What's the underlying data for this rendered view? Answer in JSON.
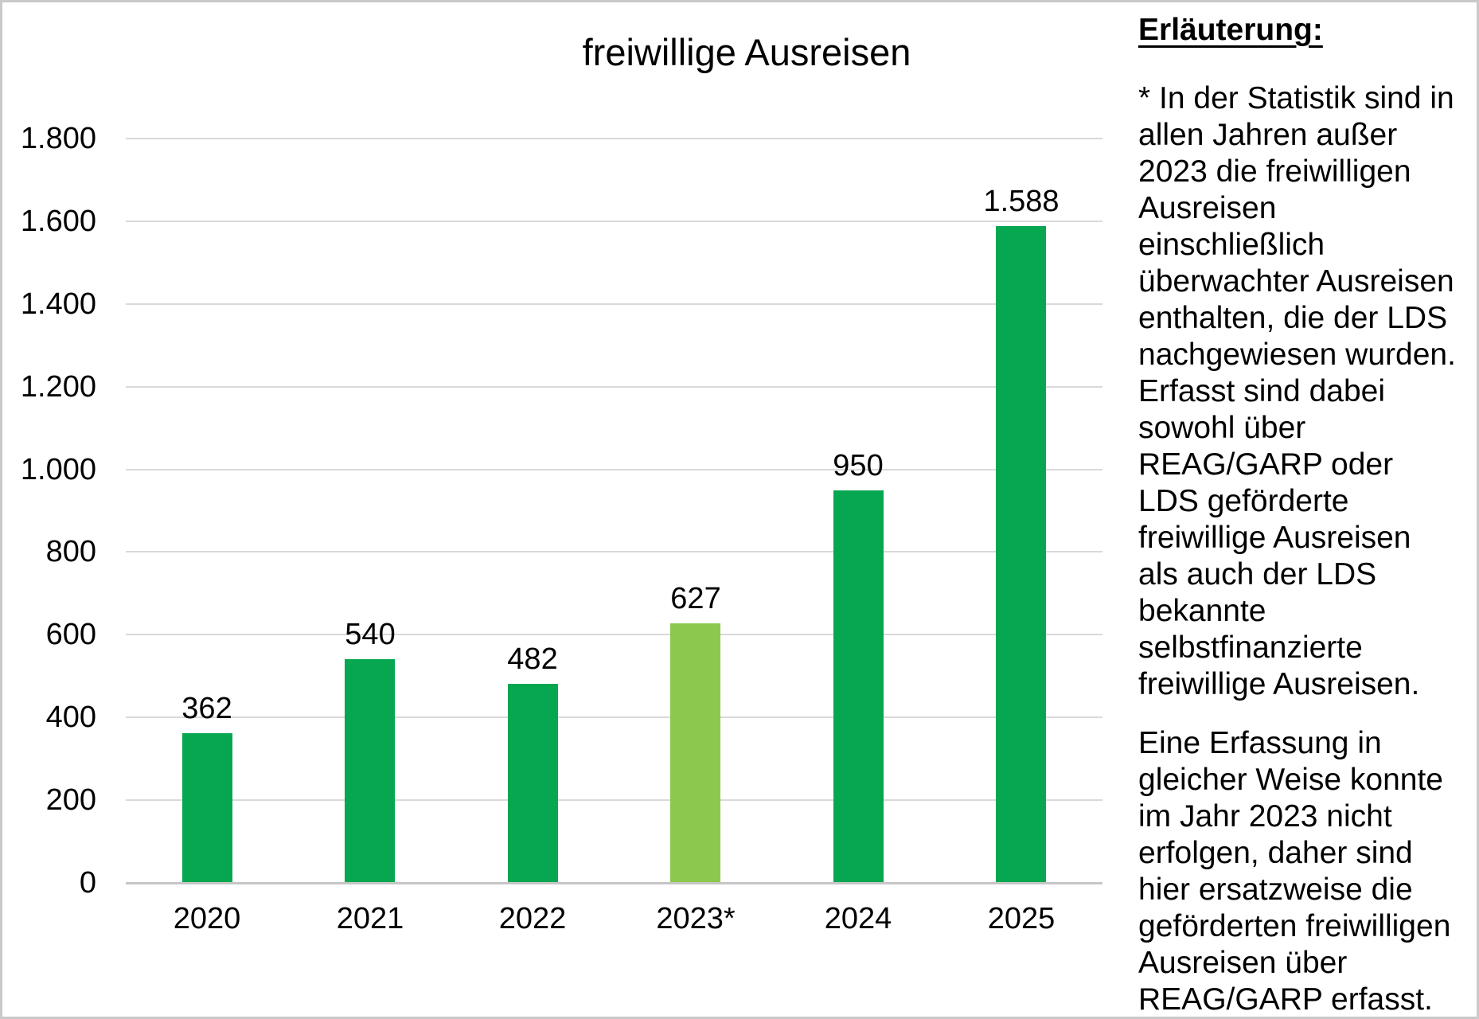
{
  "frame": {
    "background_color": "#ffffff",
    "border_color": "#c9c9c9"
  },
  "chart_data": {
    "type": "bar",
    "title": "freiwillige Ausreisen",
    "categories": [
      "2020",
      "2021",
      "2022",
      "2023*",
      "2024",
      "2025"
    ],
    "values": [
      362,
      540,
      482,
      627,
      950,
      1588
    ],
    "value_labels": [
      "362",
      "540",
      "482",
      "627",
      "950",
      "1.588"
    ],
    "bar_colors": [
      "#06a750",
      "#06a750",
      "#06a750",
      "#8cc84e",
      "#06a750",
      "#06a750"
    ],
    "bar_color_default": "#06a750",
    "bar_color_highlight_2023": "#8cc84e",
    "xlabel": "",
    "ylabel": "",
    "ylim": [
      0,
      1800
    ],
    "ytick_step": 200,
    "ytick_labels": [
      "0",
      "200",
      "400",
      "600",
      "800",
      "1.000",
      "1.200",
      "1.400",
      "1.600",
      "1.800"
    ],
    "grid": true,
    "gridline_color": "#d9d9d9",
    "axis_line_color": "#c6c6c6",
    "legend_position": "none"
  },
  "explanation": {
    "heading": "Erläuterung:",
    "paragraph1_lines": [
      "* In der Statistik sind in",
      "allen Jahren außer",
      "2023 die freiwilligen",
      "Ausreisen",
      "einschließlich",
      "überwachter Ausreisen",
      "enthalten, die der LDS",
      "nachgewiesen wurden.",
      "Erfasst sind dabei",
      "sowohl über",
      "REAG/GARP oder",
      "LDS geförderte",
      "freiwillige Ausreisen",
      "als auch der LDS",
      "bekannte",
      "selbstfinanzierte",
      "freiwillige Ausreisen."
    ],
    "paragraph2_lines": [
      "Eine Erfassung in",
      "gleicher Weise konnte",
      "im Jahr 2023 nicht",
      "erfolgen, daher sind",
      "hier ersatzweise die",
      "geförderten freiwilligen",
      "Ausreisen über",
      "REAG/GARP erfasst."
    ]
  }
}
